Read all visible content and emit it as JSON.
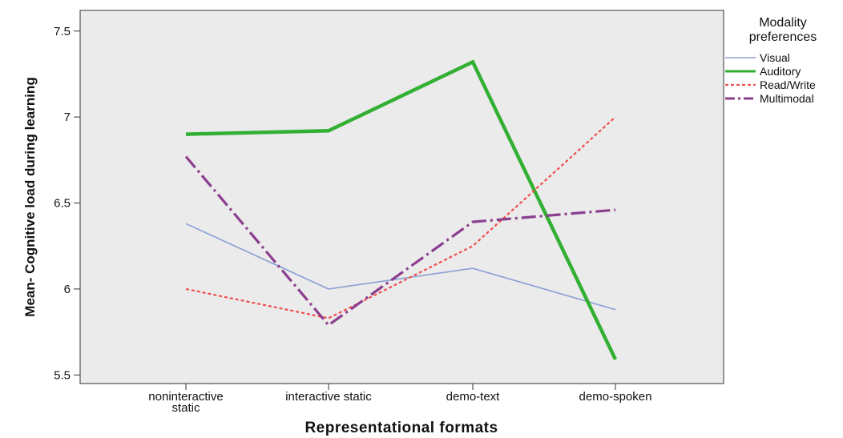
{
  "chart_data": {
    "type": "line",
    "xlabel": "Representational formats",
    "ylabel": "Mean- Cognitive load during learning",
    "categories": [
      [
        "noninteractive",
        "static"
      ],
      [
        "interactive static"
      ],
      [
        "demo-text"
      ],
      [
        "demo-spoken"
      ]
    ],
    "ylim": [
      5.45,
      7.62
    ],
    "yticks": [
      5.5,
      6,
      6.5,
      7,
      7.5
    ],
    "ytick_labels": [
      "5.5",
      "6",
      "6.5",
      "7",
      "7.5"
    ],
    "grid": false,
    "legend": {
      "title": [
        "Modality",
        "preferences"
      ],
      "position": "right"
    },
    "series": [
      {
        "name": "Visual",
        "values": [
          6.38,
          6.0,
          6.12,
          5.88
        ],
        "color": "#8a9fd4",
        "dash": "",
        "width": 1.6
      },
      {
        "name": "Auditory",
        "values": [
          6.9,
          6.92,
          7.32,
          5.59
        ],
        "color": "#33b033",
        "dash": "",
        "width": 4.5
      },
      {
        "name": "Read/Write",
        "values": [
          6.0,
          5.83,
          6.25,
          7.0
        ],
        "color": "#f04f4f",
        "dash": "4,3",
        "width": 2.2
      },
      {
        "name": "Multimodal",
        "values": [
          6.77,
          5.79,
          6.39,
          6.46
        ],
        "color": "#8b3e8e",
        "dash": "18,5,3,5",
        "width": 3.2
      }
    ]
  }
}
